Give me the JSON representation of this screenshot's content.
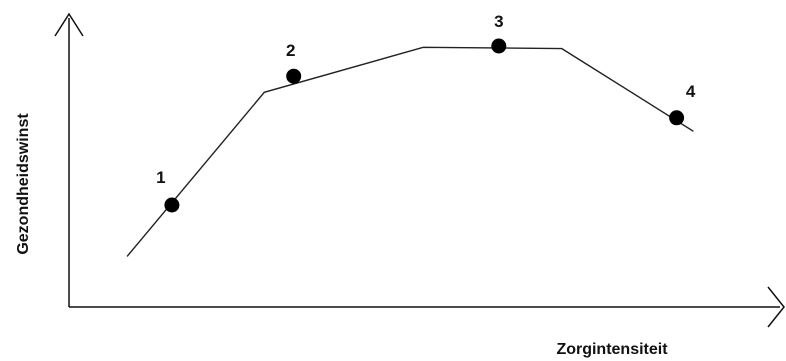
{
  "chart_data": {
    "type": "line",
    "xlabel": "Zorgintensiteit",
    "ylabel": "Gezondheidswinst",
    "grid": false,
    "legend": "none",
    "x_ticks": [],
    "y_ticks": [],
    "xlim": [
      0,
      100
    ],
    "ylim": [
      0,
      100
    ],
    "line_color": "#222222",
    "marker_color": "#000000",
    "series": [
      {
        "points": [
          {
            "x": 8.3,
            "y": 19.1
          },
          {
            "x": 27.9,
            "y": 81.0
          },
          {
            "x": 50.6,
            "y": 98.0
          },
          {
            "x": 70.4,
            "y": 97.5
          },
          {
            "x": 89.2,
            "y": 66.3
          }
        ]
      }
    ],
    "annotations": [
      {
        "label": "1",
        "x": 14.7,
        "y": 38.5
      },
      {
        "label": "2",
        "x": 32.1,
        "y": 87.1
      },
      {
        "label": "3",
        "x": 61.4,
        "y": 98.5
      },
      {
        "label": "4",
        "x": 86.8,
        "y": 71.4
      }
    ]
  }
}
